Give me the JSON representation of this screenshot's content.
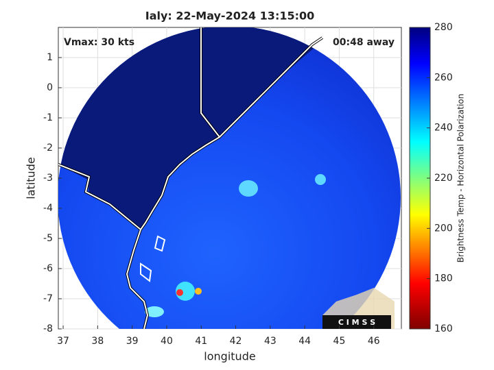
{
  "chart_data": {
    "type": "map",
    "title": "Ialy: 22-May-2024 13:15:00",
    "annotations": [
      "Vmax: 30 kts",
      "00:48 away"
    ],
    "xlabel": "longitude",
    "ylabel": "latitude",
    "xlim": [
      36.86,
      46.8
    ],
    "ylim": [
      -8,
      2
    ],
    "xticks": [
      37,
      38,
      39,
      40,
      41,
      42,
      43,
      44,
      45,
      46
    ],
    "yticks": [
      -8,
      -7,
      -6,
      -5,
      -4,
      -3,
      -2,
      -1,
      0,
      1
    ],
    "grid": true,
    "colorbar": {
      "label": "Brightness Temp - Horizontal Polarization",
      "lim": [
        160,
        280
      ],
      "ticks": [
        160,
        180,
        200,
        220,
        240,
        260,
        280
      ]
    },
    "logo": "C I M S S"
  }
}
